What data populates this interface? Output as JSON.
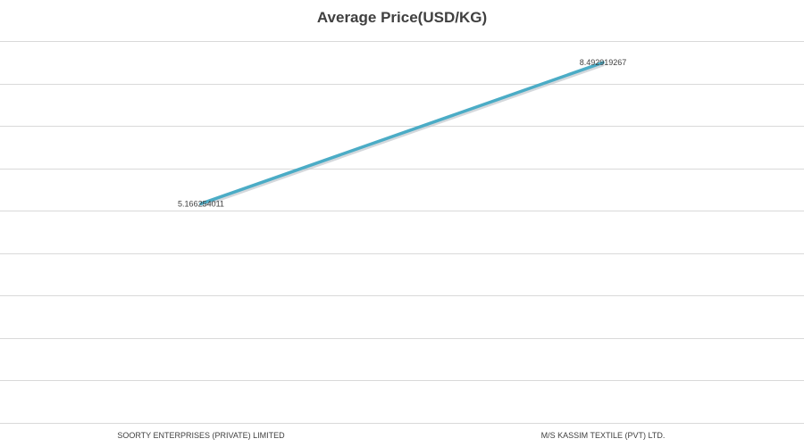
{
  "chart_data": {
    "type": "line",
    "title": "Average Price(USD/KG)",
    "xlabel": "",
    "ylabel": "",
    "categories": [
      "SOORTY ENTERPRISES (PRIVATE) LIMITED",
      "M/S KASSIM TEXTILE (PVT) LTD."
    ],
    "series": [
      {
        "values": [
          5.166254011,
          8.492919267
        ],
        "value_labels": [
          "5.166254011",
          "8.492919267"
        ],
        "color": "#4BACC6"
      }
    ],
    "ylim": [
      0,
      9
    ],
    "grid": true,
    "legend": "none",
    "colors": {
      "gridline": "#D9D9D9",
      "text": "#404040"
    }
  }
}
